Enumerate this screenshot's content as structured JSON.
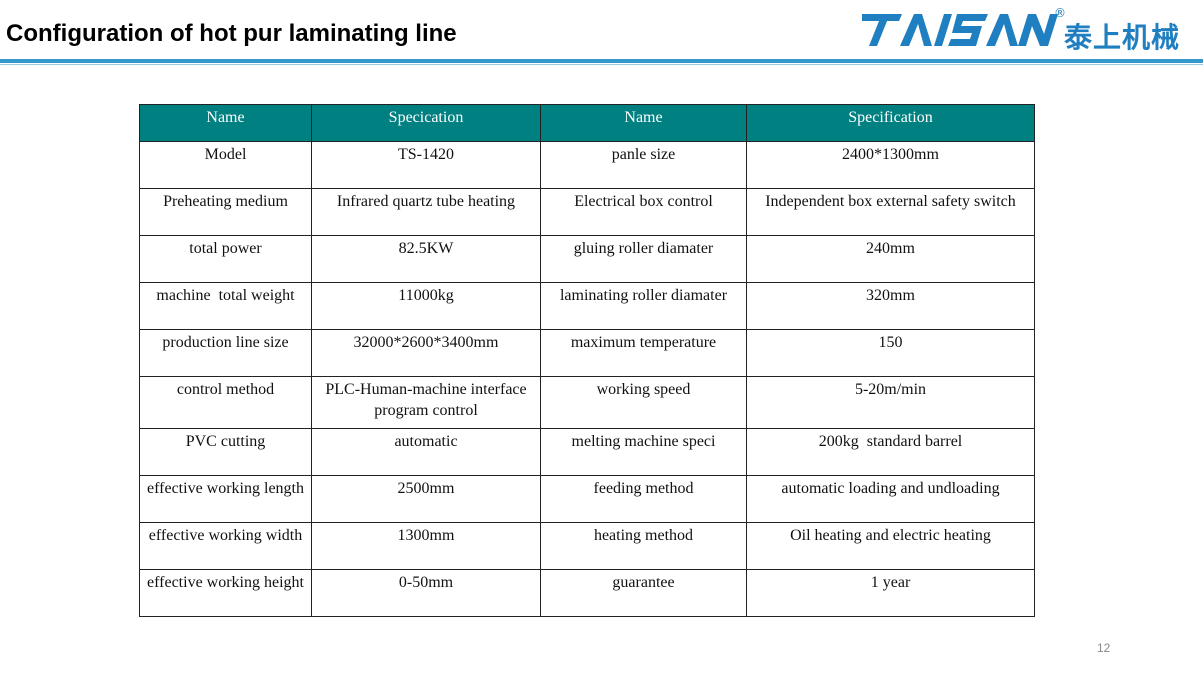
{
  "slide": {
    "title": "Configuration of hot pur laminating line",
    "page_number": "12"
  },
  "logo": {
    "brand_latin": "TAISAN",
    "brand_chinese": "泰上机械",
    "registered_mark": "®",
    "color": "#1f7fc0"
  },
  "colors": {
    "header_fill": "#008080",
    "rule": "#3399cc"
  },
  "table": {
    "headers": [
      "Name",
      "Specication",
      "Name",
      "Specification"
    ],
    "rows": [
      [
        "Model",
        "TS-1420",
        "panle size",
        "2400*1300mm"
      ],
      [
        "Preheating medium",
        "Infrared quartz tube heating",
        "Electrical box control",
        "Independent box external safety switch"
      ],
      [
        "total power",
        "82.5KW",
        "gluing roller diamater",
        "240mm"
      ],
      [
        "machine  total weight",
        "11000kg",
        "laminating roller diamater",
        "320mm"
      ],
      [
        "production line size",
        "32000*2600*3400mm",
        "maximum temperature",
        "150"
      ],
      [
        "control method",
        "PLC-Human-machine interface program control",
        "working speed",
        "5-20m/min"
      ],
      [
        "PVC cutting",
        "automatic",
        "melting machine speci",
        "200kg  standard barrel"
      ],
      [
        "effective working length",
        "2500mm",
        "feeding method",
        "automatic loading and undloading"
      ],
      [
        "effective working width",
        "1300mm",
        "heating method",
        "Oil heating and electric heating"
      ],
      [
        "effective working height",
        "0-50mm",
        "guarantee",
        "1 year"
      ]
    ]
  }
}
